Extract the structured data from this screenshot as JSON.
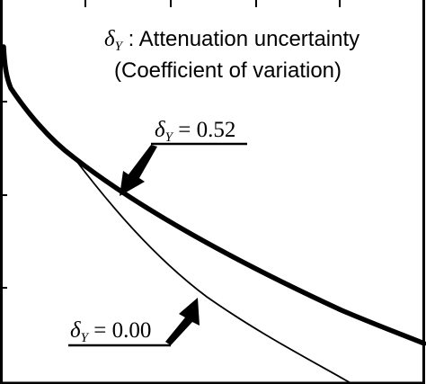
{
  "chart_data": {
    "type": "line",
    "title_line1": "δY : Attenuation uncertainty",
    "title_line2": "(Coefficient of variation)",
    "series": [
      {
        "name": "δY = 0.52",
        "label_symbol": "δ",
        "label_subscript": "Y",
        "label_value": " = 0.52",
        "emphasis": "bold"
      },
      {
        "name": "δY = 0.00",
        "label_symbol": "δ",
        "label_subscript": "Y",
        "label_value": " = 0.00",
        "emphasis": "thin"
      }
    ],
    "grid": false,
    "legend": "callout-arrows"
  },
  "colors": {
    "line": "#000000",
    "background": "#ffffff"
  }
}
